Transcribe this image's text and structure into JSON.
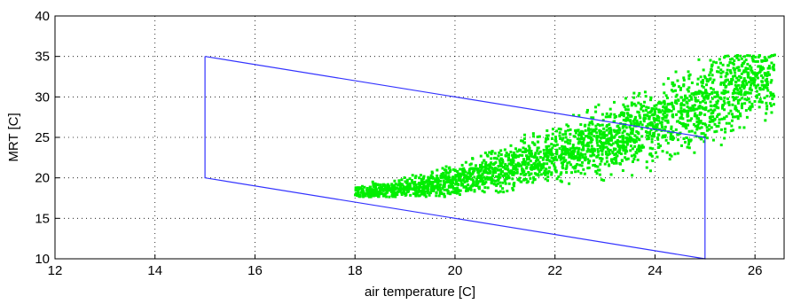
{
  "chart_data": {
    "type": "scatter",
    "title": "",
    "xlabel": "air temperature [C]",
    "ylabel": "MRT [C]",
    "xlim": [
      12,
      26.6
    ],
    "ylim": [
      10,
      40
    ],
    "xticks": [
      12,
      14,
      16,
      18,
      20,
      22,
      24,
      26
    ],
    "yticks": [
      10,
      15,
      20,
      25,
      30,
      35,
      40
    ],
    "grid": true,
    "colors": {
      "scatter": "#00ee00",
      "boundary": "#3333ff"
    },
    "boundary": {
      "x": [
        15,
        25,
        25,
        15,
        15
      ],
      "y": [
        35,
        25,
        10,
        20,
        35
      ]
    },
    "cloud_centerline": [
      {
        "x": 18.0,
        "y": 18.2
      },
      {
        "x": 19.0,
        "y": 18.5
      },
      {
        "x": 20.0,
        "y": 19.5
      },
      {
        "x": 21.0,
        "y": 21.0
      },
      {
        "x": 22.0,
        "y": 22.8
      },
      {
        "x": 23.0,
        "y": 24.5
      },
      {
        "x": 24.0,
        "y": 26.5
      },
      {
        "x": 25.0,
        "y": 29.5
      },
      {
        "x": 26.0,
        "y": 33.0
      }
    ]
  }
}
